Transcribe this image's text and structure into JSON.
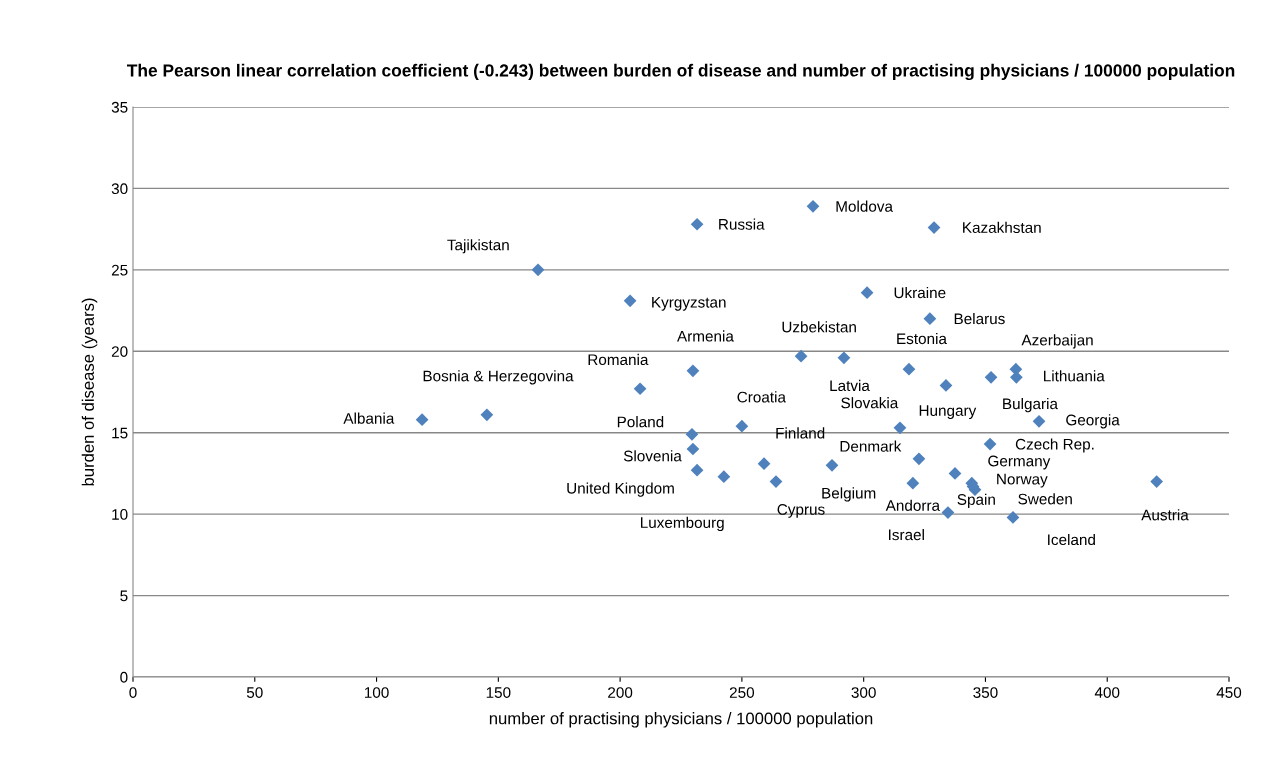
{
  "chart_data": {
    "type": "scatter",
    "title": "The Pearson linear correlation coefficient (-0.243) between burden of disease and number of practising physicians / 100000 population",
    "xlabel": "number of practising physicians / 100000 population",
    "ylabel": "burden of disease (years)",
    "x": [
      118.7,
      145.3,
      166.3,
      204.1,
      208.2,
      231.6,
      229.9,
      229.5,
      229.9,
      231.6,
      242.6,
      250.0,
      259.1,
      264.0,
      274.3,
      279.2,
      287.0,
      291.9,
      301.4,
      318.6,
      314.9,
      320.2,
      322.7,
      328.9,
      327.2,
      333.8,
      334.6,
      337.5,
      344.4,
      345.7,
      344.9,
      352.3,
      351.9,
      361.3,
      362.5,
      362.7,
      372.0,
      420.3
    ],
    "series": [
      {
        "color": "#4f81bd",
        "values": [
          15.8,
          16.1,
          25.0,
          23.1,
          17.7,
          27.8,
          18.8,
          14.9,
          14.0,
          12.7,
          12.3,
          15.4,
          13.1,
          12.0,
          19.7,
          28.9,
          13.0,
          19.6,
          23.6,
          18.9,
          15.3,
          11.9,
          13.4,
          27.6,
          22.0,
          17.9,
          10.1,
          12.5,
          11.9,
          11.5,
          11.7,
          18.4,
          14.3,
          9.8,
          18.9,
          18.4,
          15.7,
          12.0
        ]
      }
    ],
    "annotations": [
      {
        "text": "Albania",
        "x": 118.7,
        "y": 15.8
      },
      {
        "text": "Bosnia & Herzegovina",
        "x": 145.3,
        "y": 16.1
      },
      {
        "text": "Tajikistan",
        "x": 166.3,
        "y": 25.0
      },
      {
        "text": "Kyrgyzstan",
        "x": 204.1,
        "y": 23.1
      },
      {
        "text": "Romania",
        "x": 208.2,
        "y": 17.7
      },
      {
        "text": "Russia",
        "x": 231.6,
        "y": 27.8
      },
      {
        "text": "Armenia",
        "x": 229.9,
        "y": 18.8
      },
      {
        "text": "Poland",
        "x": 229.5,
        "y": 14.9
      },
      {
        "text": "Slovenia",
        "x": 229.9,
        "y": 14.0
      },
      {
        "text": "United Kingdom",
        "x": 231.6,
        "y": 12.7
      },
      {
        "text": "Luxembourg",
        "x": 242.6,
        "y": 12.3
      },
      {
        "text": "Croatia",
        "x": 250.0,
        "y": 15.4
      },
      {
        "text": "Finland",
        "x": 259.1,
        "y": 13.1
      },
      {
        "text": "Cyprus",
        "x": 264.0,
        "y": 12.0
      },
      {
        "text": "Uzbekistan",
        "x": 274.3,
        "y": 19.7
      },
      {
        "text": "Moldova",
        "x": 279.2,
        "y": 28.9
      },
      {
        "text": "Belgium",
        "x": 287.0,
        "y": 13.0
      },
      {
        "text": "Latvia",
        "x": 291.9,
        "y": 19.6
      },
      {
        "text": "Ukraine",
        "x": 301.4,
        "y": 23.6
      },
      {
        "text": "Estonia",
        "x": 318.6,
        "y": 18.9
      },
      {
        "text": "Slovakia",
        "x": 314.9,
        "y": 15.3
      },
      {
        "text": "Andorra",
        "x": 320.2,
        "y": 11.9
      },
      {
        "text": "Denmark",
        "x": 322.7,
        "y": 13.4
      },
      {
        "text": "Kazakhstan",
        "x": 328.9,
        "y": 27.6
      },
      {
        "text": "Belarus",
        "x": 327.2,
        "y": 22.0
      },
      {
        "text": "Hungary",
        "x": 333.8,
        "y": 17.9
      },
      {
        "text": "Israel",
        "x": 334.6,
        "y": 10.1
      },
      {
        "text": "Germany",
        "x": 337.5,
        "y": 12.5
      },
      {
        "text": "Norway",
        "x": 344.4,
        "y": 11.9
      },
      {
        "text": "Spain",
        "x": 345.7,
        "y": 11.5
      },
      {
        "text": "Sweden",
        "x": 344.9,
        "y": 11.7
      },
      {
        "text": "Bulgaria",
        "x": 352.3,
        "y": 18.4
      },
      {
        "text": "Czech Rep.",
        "x": 351.9,
        "y": 14.3
      },
      {
        "text": "Iceland",
        "x": 361.3,
        "y": 9.8
      },
      {
        "text": "Azerbaijan",
        "x": 362.5,
        "y": 18.9
      },
      {
        "text": "Lithuania",
        "x": 362.7,
        "y": 18.4
      },
      {
        "text": "Georgia",
        "x": 372.0,
        "y": 15.7
      },
      {
        "text": "Austria",
        "x": 420.3,
        "y": 12.0
      }
    ],
    "xlim": [
      0,
      450
    ],
    "xticks": [
      0,
      50,
      100,
      150,
      200,
      250,
      300,
      350,
      400,
      450
    ],
    "ylim": [
      0,
      35
    ],
    "yticks": [
      0,
      5,
      10,
      15,
      20,
      25,
      30,
      35
    ],
    "grid": "y",
    "marker": "diamond",
    "legend": false
  }
}
